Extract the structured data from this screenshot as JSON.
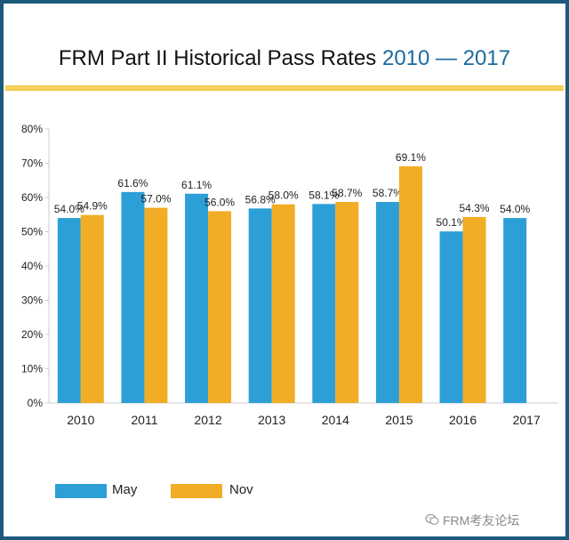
{
  "colors": {
    "may": "#2c9fd6",
    "nov": "#f2ad26",
    "frame": "#1b5a7a",
    "title_year": "#1b6aa0",
    "axis": "#cccccc"
  },
  "header": {
    "title_main": "FRM Part II Historical Pass Rates ",
    "title_years": "2010 — 2017"
  },
  "legend": {
    "may_label": "May",
    "nov_label": "Nov"
  },
  "watermark": {
    "text": "FRM考友论坛",
    "icon": "wechat-icon"
  },
  "chart_data": {
    "type": "bar",
    "title": "FRM Part II Historical Pass Rates 2010 — 2017",
    "categories": [
      "2010",
      "2011",
      "2012",
      "2013",
      "2014",
      "2015",
      "2016",
      "2017"
    ],
    "series": [
      {
        "name": "May",
        "values": [
          54.0,
          61.6,
          61.1,
          56.8,
          58.1,
          58.7,
          50.1,
          54.0
        ],
        "labels": [
          "54.0%",
          "61.6%",
          "61.1%",
          "56.8%",
          "58.1%",
          "58.7%",
          "50.1%",
          "54.0%"
        ]
      },
      {
        "name": "Nov",
        "values": [
          54.9,
          57.0,
          56.0,
          58.0,
          58.7,
          69.1,
          54.3,
          null
        ],
        "labels": [
          "54.9%",
          "57.0%",
          "56.0%",
          "58.0%",
          "58.7%",
          "69.1%",
          "54.3%",
          ""
        ]
      }
    ],
    "yticks": [
      "0%",
      "10%",
      "20%",
      "30%",
      "40%",
      "50%",
      "60%",
      "70%",
      "80%"
    ],
    "ylim": [
      0,
      80
    ],
    "xlabel": "",
    "ylabel": "",
    "grid": false,
    "legend_position": "bottom-left"
  }
}
